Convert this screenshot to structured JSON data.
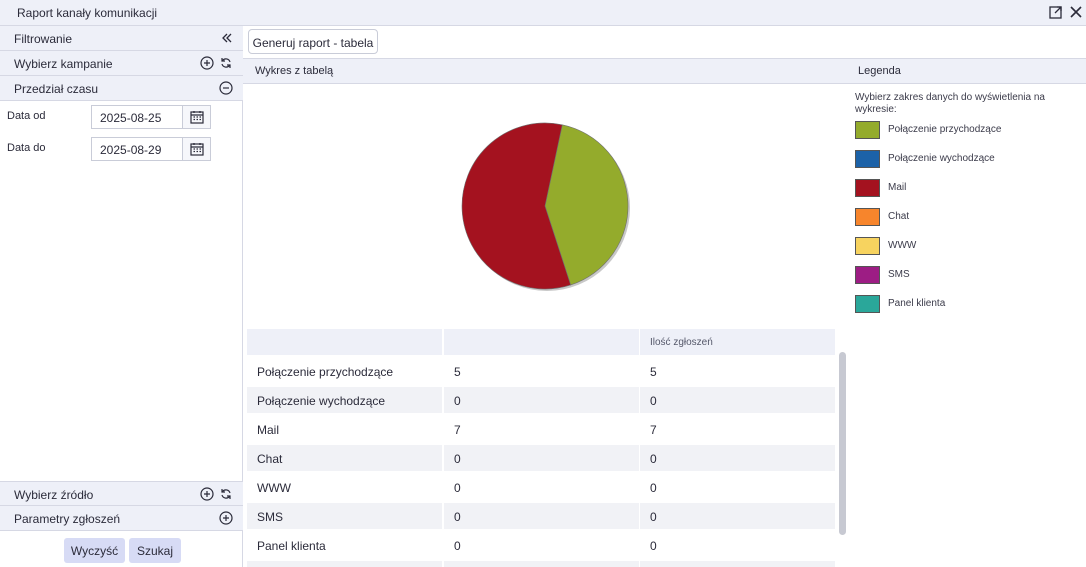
{
  "window": {
    "title": "Raport kanały komunikacji"
  },
  "sidebar": {
    "filter_label": "Filtrowanie",
    "campaign_label": "Wybierz kampanie",
    "time_label": "Przedział czasu",
    "date_from_label": "Data od",
    "date_from_value": "2025-08-25",
    "date_to_label": "Data do",
    "date_to_value": "2025-08-29",
    "source_label": "Wybierz źródło",
    "params_label": "Parametry zgłoszeń",
    "clear_label": "Wyczyść",
    "search_label": "Szukaj"
  },
  "main": {
    "generate_label": "Generuj raport - tabela",
    "chart_section_label": "Wykres z tabelą",
    "legend_section_label": "Legenda",
    "legend_intro": "Wybierz zakres danych do wyświetlenia na wykresie:"
  },
  "legend": [
    {
      "label": "Połączenie przychodzące",
      "color": "#94ab2c"
    },
    {
      "label": "Połączenie wychodzące",
      "color": "#1c62a8"
    },
    {
      "label": "Mail",
      "color": "#a4121f"
    },
    {
      "label": "Chat",
      "color": "#f7852c"
    },
    {
      "label": "WWW",
      "color": "#f7d35f"
    },
    {
      "label": "SMS",
      "color": "#9d1d84"
    },
    {
      "label": "Panel klienta",
      "color": "#2aa79a"
    }
  ],
  "table": {
    "headers": [
      "",
      "",
      "Ilość zgłoszeń"
    ],
    "rows": [
      [
        "Połączenie przychodzące",
        "5",
        "5"
      ],
      [
        "Połączenie wychodzące",
        "0",
        "0"
      ],
      [
        "Mail",
        "7",
        "7"
      ],
      [
        "Chat",
        "0",
        "0"
      ],
      [
        "WWW",
        "0",
        "0"
      ],
      [
        "SMS",
        "0",
        "0"
      ],
      [
        "Panel klienta",
        "0",
        "0"
      ]
    ]
  },
  "chart_data": {
    "type": "pie",
    "categories": [
      "Połączenie przychodzące",
      "Połączenie wychodzące",
      "Mail",
      "Chat",
      "WWW",
      "SMS",
      "Panel klienta"
    ],
    "values": [
      5,
      0,
      7,
      0,
      0,
      0,
      0
    ],
    "colors": [
      "#94ab2c",
      "#1c62a8",
      "#a4121f",
      "#f7852c",
      "#f7d35f",
      "#9d1d84",
      "#2aa79a"
    ],
    "start_angle_deg": 12
  }
}
